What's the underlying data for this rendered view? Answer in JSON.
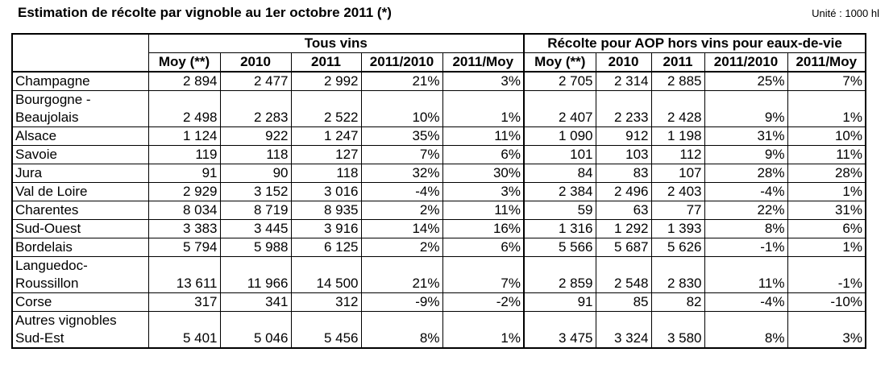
{
  "title": "Estimation de récolte par vignoble au 1er octobre 2011 (*)",
  "unit": "Unité : 1000 hl",
  "group_headers": [
    "Tous vins",
    "Récolte pour AOP hors vins pour eaux-de-vie"
  ],
  "sub_headers": [
    "Moy (**)",
    "2010",
    "2011",
    "2011/2010",
    "2011/Moy",
    "Moy (**)",
    "2010",
    "2011",
    "2011/2010",
    "2011/Moy"
  ],
  "rows": [
    {
      "label": "Champagne",
      "cells": [
        "2 894",
        "2 477",
        "2 992",
        "21%",
        "3%",
        "2 705",
        "2 314",
        "2 885",
        "25%",
        "7%"
      ]
    },
    {
      "label": "Bourgogne - Beaujolais",
      "cells": [
        "2 498",
        "2 283",
        "2 522",
        "10%",
        "1%",
        "2 407",
        "2 233",
        "2 428",
        "9%",
        "1%"
      ]
    },
    {
      "label": "Alsace",
      "cells": [
        "1 124",
        "922",
        "1 247",
        "35%",
        "11%",
        "1 090",
        "912",
        "1 198",
        "31%",
        "10%"
      ]
    },
    {
      "label": "Savoie",
      "cells": [
        "119",
        "118",
        "127",
        "7%",
        "6%",
        "101",
        "103",
        "112",
        "9%",
        "11%"
      ]
    },
    {
      "label": "Jura",
      "cells": [
        "91",
        "90",
        "118",
        "32%",
        "30%",
        "84",
        "83",
        "107",
        "28%",
        "28%"
      ]
    },
    {
      "label": "Val de Loire",
      "cells": [
        "2 929",
        "3 152",
        "3 016",
        "-4%",
        "3%",
        "2 384",
        "2 496",
        "2 403",
        "-4%",
        "1%"
      ]
    },
    {
      "label": "Charentes",
      "cells": [
        "8 034",
        "8 719",
        "8 935",
        "2%",
        "11%",
        "59",
        "63",
        "77",
        "22%",
        "31%"
      ]
    },
    {
      "label": "Sud-Ouest",
      "cells": [
        "3 383",
        "3 445",
        "3 916",
        "14%",
        "16%",
        "1 316",
        "1 292",
        "1 393",
        "8%",
        "6%"
      ]
    },
    {
      "label": "Bordelais",
      "cells": [
        "5 794",
        "5 988",
        "6 125",
        "2%",
        "6%",
        "5 566",
        "5 687",
        "5 626",
        "-1%",
        "1%"
      ]
    },
    {
      "label": "Languedoc-Roussillon",
      "cells": [
        "13 611",
        "11 966",
        "14 500",
        "21%",
        "7%",
        "2 859",
        "2 548",
        "2 830",
        "11%",
        "-1%"
      ]
    },
    {
      "label": "Corse",
      "cells": [
        "317",
        "341",
        "312",
        "-9%",
        "-2%",
        "91",
        "85",
        "82",
        "-4%",
        "-10%"
      ]
    },
    {
      "label": "Autres vignobles Sud-Est",
      "cells": [
        "5 401",
        "5 046",
        "5 456",
        "8%",
        "1%",
        "3 475",
        "3 324",
        "3 580",
        "8%",
        "3%"
      ]
    }
  ]
}
